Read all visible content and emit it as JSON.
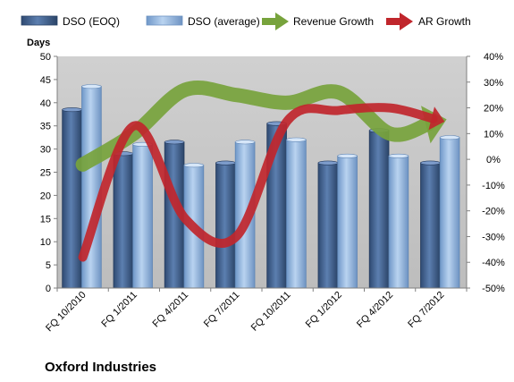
{
  "chart_data": {
    "type": "bar",
    "title": "Oxford Industries",
    "ylabel": "Days",
    "ylim": [
      0,
      50
    ],
    "y_ticks": [
      0,
      5,
      10,
      15,
      20,
      25,
      30,
      35,
      40,
      45,
      50
    ],
    "y2lim": [
      -50,
      40
    ],
    "y2_ticks": [
      "-50%",
      "-40%",
      "-30%",
      "-20%",
      "-10%",
      "0%",
      "10%",
      "20%",
      "30%",
      "40%"
    ],
    "y2_tick_values": [
      -50,
      -40,
      -30,
      -20,
      -10,
      0,
      10,
      20,
      30,
      40
    ],
    "categories": [
      "FQ 10/2010",
      "FQ 1/2011",
      "FQ 4/2011",
      "FQ 7/2011",
      "FQ 10/2011",
      "FQ 1/2012",
      "FQ 4/2012",
      "FQ 7/2012"
    ],
    "series": [
      {
        "name": "DSO (EOQ)",
        "type": "bar",
        "axis": "left",
        "color": "#3f5f8f",
        "values": [
          38.5,
          29,
          31.5,
          27,
          35.5,
          27,
          34,
          27
        ]
      },
      {
        "name": "DSO (average)",
        "type": "bar",
        "axis": "right-days",
        "color": "#8fb4e0",
        "values": [
          43.5,
          31,
          26.5,
          31.5,
          32,
          28.5,
          28.5,
          32.5
        ]
      },
      {
        "name": "Revenue Growth",
        "type": "line",
        "axis": "right",
        "color": "#77a33c",
        "values": [
          -2,
          10,
          27,
          25,
          22,
          26,
          10,
          15
        ]
      },
      {
        "name": "AR Growth",
        "type": "line",
        "axis": "right",
        "color": "#c0262c",
        "values": [
          -38,
          13,
          -23,
          -30,
          15,
          19,
          20,
          15
        ]
      }
    ],
    "legend_position": "top",
    "grid": false,
    "colors": {
      "plot_bg": "#c8c8c8",
      "page_bg": "#ffffff"
    }
  }
}
